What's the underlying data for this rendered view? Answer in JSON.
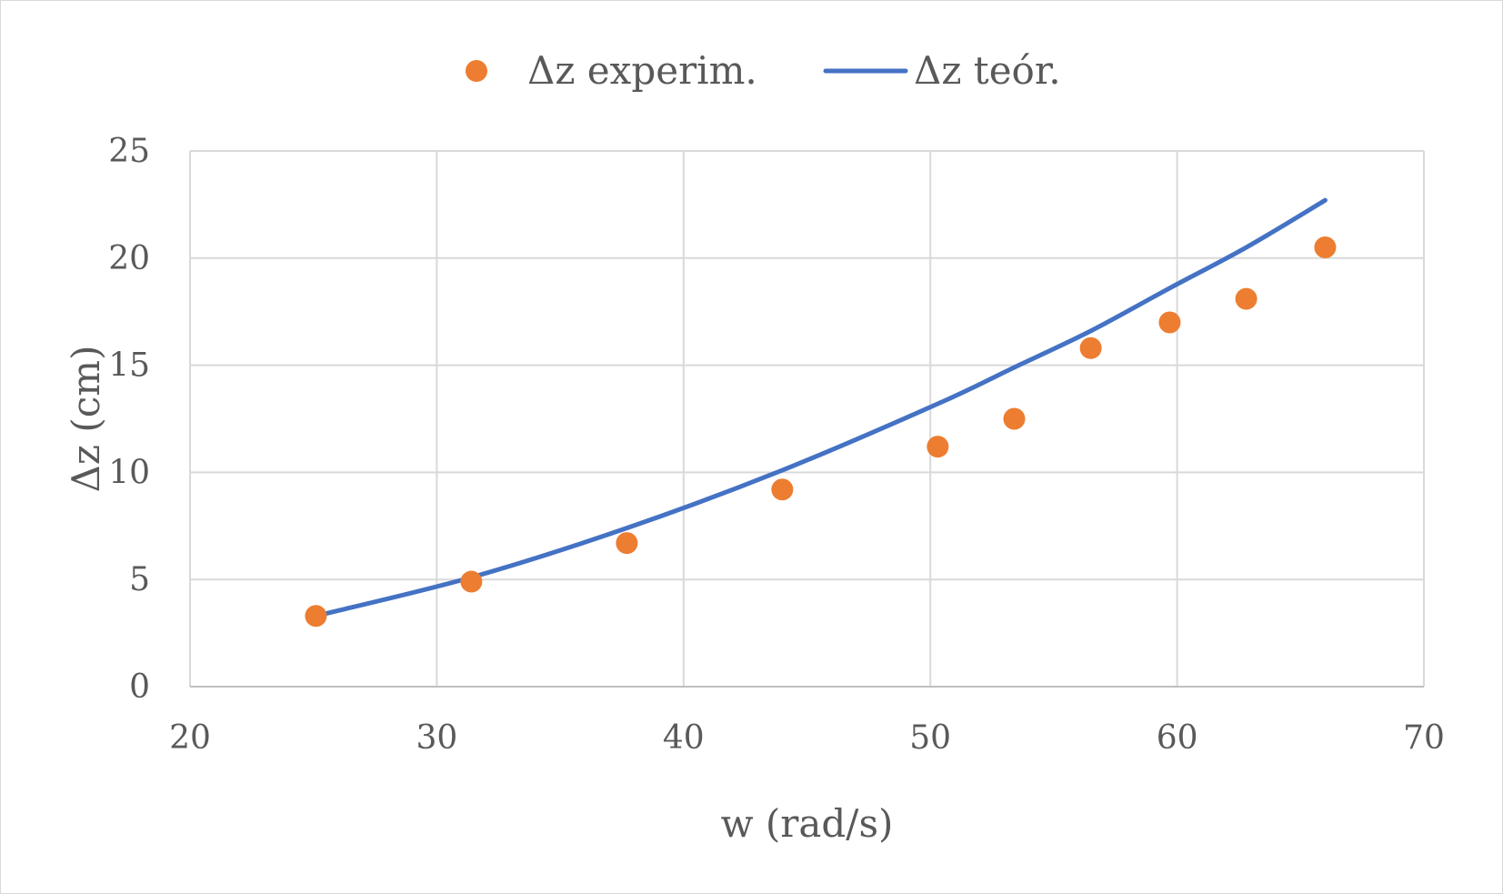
{
  "chart_data": {
    "type": "scatter",
    "title": "",
    "xlabel": "w (rad/s)",
    "ylabel": "Δz (cm)",
    "xlim": [
      20,
      70
    ],
    "ylim": [
      0,
      25
    ],
    "x_ticks": [
      20,
      30,
      40,
      50,
      60,
      70
    ],
    "y_ticks": [
      0,
      5,
      10,
      15,
      20,
      25
    ],
    "grid": true,
    "legend_position": "top",
    "series": [
      {
        "name": "Δz experim.",
        "kind": "scatter",
        "color": "#ED7D31",
        "x": [
          25.1,
          31.4,
          37.7,
          44.0,
          50.3,
          53.4,
          56.5,
          59.7,
          62.8,
          66.0
        ],
        "y": [
          3.3,
          4.9,
          6.7,
          9.2,
          11.2,
          12.5,
          15.8,
          17.0,
          18.1,
          20.5
        ]
      },
      {
        "name": "Δz teór.",
        "kind": "line",
        "color": "#4472C4",
        "x": [
          25.1,
          31.4,
          37.7,
          44.0,
          50.3,
          53.4,
          56.5,
          59.7,
          62.8,
          66.0
        ],
        "y": [
          3.3,
          5.1,
          7.4,
          10.1,
          13.2,
          14.9,
          16.6,
          18.6,
          20.5,
          22.7
        ]
      }
    ]
  }
}
